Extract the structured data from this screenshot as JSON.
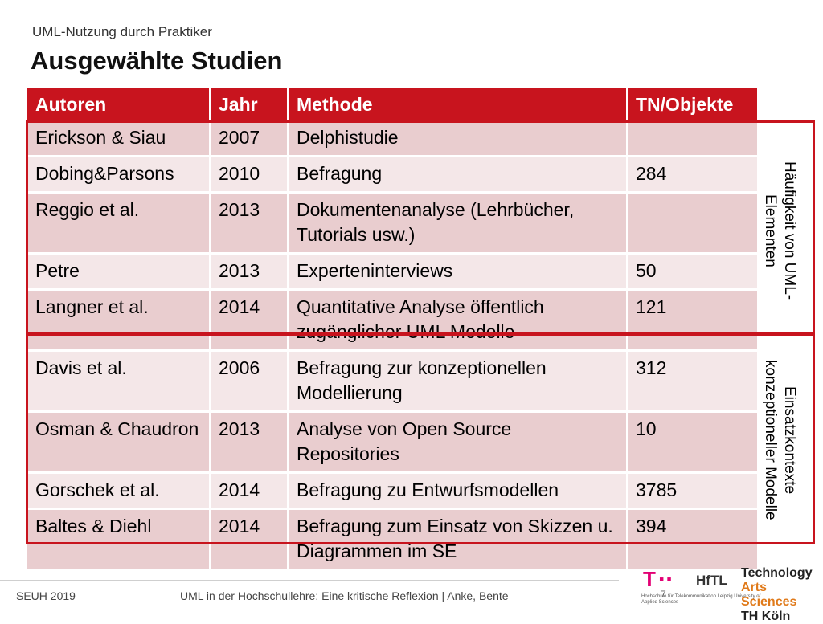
{
  "header": {
    "subtitle": "UML-Nutzung durch Praktiker",
    "title": "Ausgewählte Studien"
  },
  "table": {
    "columns": [
      "Autoren",
      "Jahr",
      "Methode",
      "TN/Objekte"
    ],
    "rows": [
      [
        "Erickson & Siau",
        "2007",
        "Delphistudie",
        ""
      ],
      [
        "Dobing&Parsons",
        "2010",
        "Befragung",
        "284"
      ],
      [
        "Reggio et al.",
        "2013",
        "Dokumentenanalyse (Lehrbücher, Tutorials usw.)",
        ""
      ],
      [
        "Petre",
        "2013",
        "Experteninterviews",
        "50"
      ],
      [
        "Langner et al.",
        "2014",
        "Quantitative Analyse öffentlich zugänglicher UML Modelle",
        "121"
      ],
      [
        "Davis et al.",
        "2006",
        "Befragung zur konzeptionellen Modellierung",
        "312"
      ],
      [
        "Osman & Chaudron",
        "2013",
        "Analyse von Open Source Repositories",
        "10"
      ],
      [
        "Gorschek et al.",
        "2014",
        "Befragung zu Entwurfsmodellen",
        "3785"
      ],
      [
        "Baltes & Diehl",
        "2014",
        "Befragung zum Einsatz von Skizzen u. Diagrammen im SE",
        "394"
      ]
    ]
  },
  "groups": [
    {
      "label": "Häufigkeit von UML-Elementen"
    },
    {
      "label": "Einsatzkontexte konzeptioneller Modelle"
    }
  ],
  "footer": {
    "left": "SEUH 2019",
    "center": "UML in der Hochschullehre: Eine kritische Reflexion   |   Anke, Bente",
    "page": "7"
  },
  "logos": {
    "telekom": "T",
    "hftl": "HfTL",
    "hftl_sub": "Hochschule für Telekommunikation Leipzig University of Applied Sciences",
    "th_line1": "Technology",
    "th_line2": "Arts Sciences",
    "th_line3": "TH Köln"
  },
  "colors": {
    "accent": "#c8141e",
    "row_dark": "#e9cdcf",
    "row_light": "#f4e7e8",
    "telekom": "#e20074",
    "th_orange": "#e07a1a"
  }
}
